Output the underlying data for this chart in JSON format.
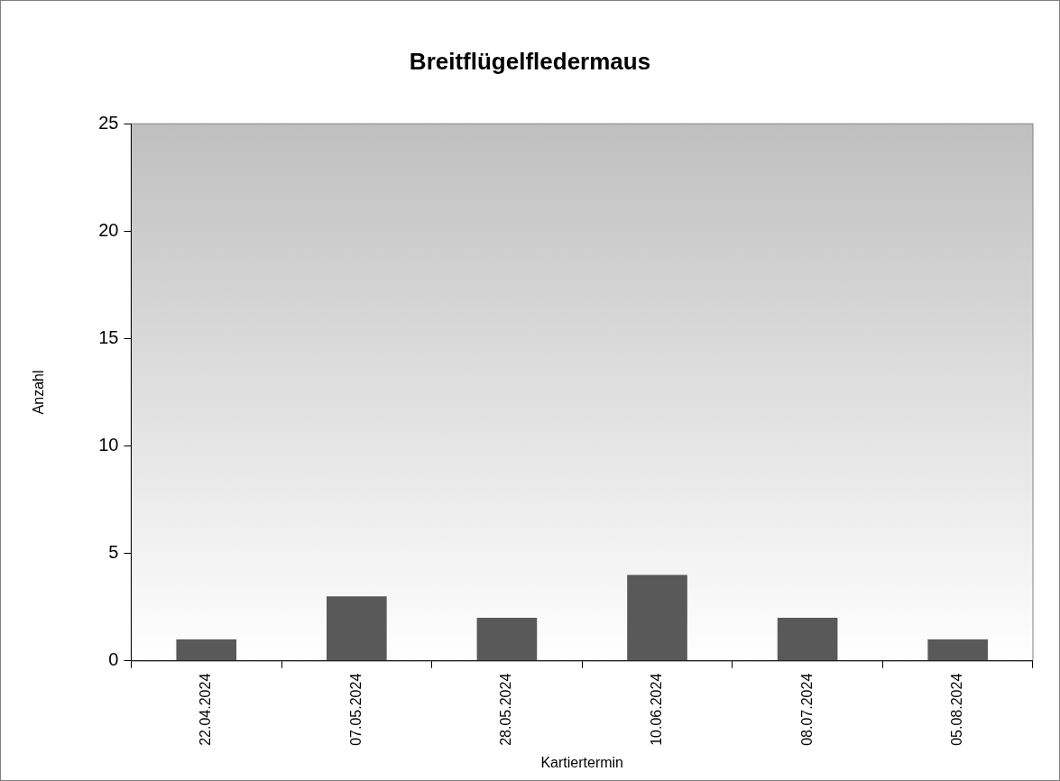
{
  "chart_data": {
    "type": "bar",
    "title": "Breitflügelfledermaus",
    "xlabel": "Kartiertermin",
    "ylabel": "Anzahl",
    "categories": [
      "22.04.2024",
      "07.05.2024",
      "28.05.2024",
      "10.06.2024",
      "08.07.2024",
      "05.08.2024"
    ],
    "values": [
      1,
      3,
      2,
      4,
      2,
      1
    ],
    "color": "#595959",
    "ylim": [
      0,
      25
    ],
    "yticks": [
      0,
      5,
      10,
      15,
      20,
      25
    ],
    "grid": false,
    "legend": false
  }
}
